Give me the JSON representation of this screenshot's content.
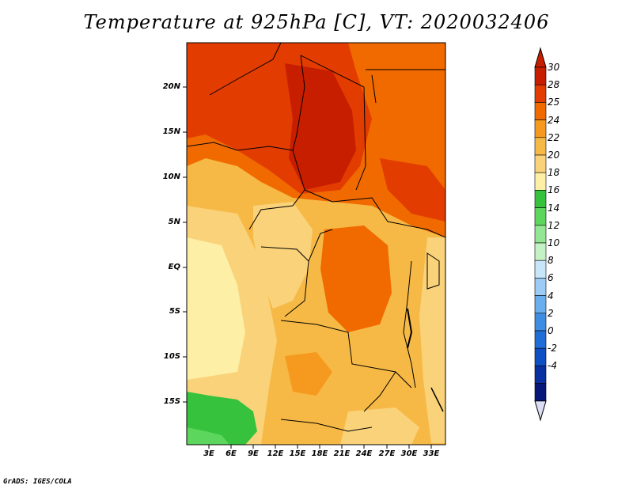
{
  "title": "Temperature at 925hPa [C], VT: 2020032406",
  "credit": "GrADS: IGES/COLA",
  "map": {
    "region": "Central Africa",
    "lat_labels": [
      "20N",
      "15N",
      "10N",
      "5N",
      "EQ",
      "5S",
      "10S",
      "15S"
    ],
    "lon_labels": [
      "3E",
      "6E",
      "9E",
      "12E",
      "15E",
      "18E",
      "21E",
      "24E",
      "27E",
      "30E",
      "33E"
    ]
  },
  "colorbar": {
    "labels": [
      "30",
      "28",
      "25",
      "24",
      "22",
      "20",
      "18",
      "16",
      "14",
      "12",
      "10",
      "8",
      "6",
      "4",
      "2",
      "0",
      "-2",
      "-4"
    ],
    "colors": [
      "#c81e00",
      "#e23c00",
      "#f06a00",
      "#f59a1e",
      "#f7b945",
      "#fad27a",
      "#fdefa5",
      "#36c23c",
      "#5cd65c",
      "#93e693",
      "#c4f2c4",
      "#c8e6fa",
      "#9cccf5",
      "#6aaeee",
      "#3d8ee3",
      "#1f6ed8",
      "#0f4fc4",
      "#0a2fa0",
      "#06177a"
    ],
    "top_arrow_color": "#c81e00",
    "bottom_arrow_color": "#dcdcf5"
  }
}
